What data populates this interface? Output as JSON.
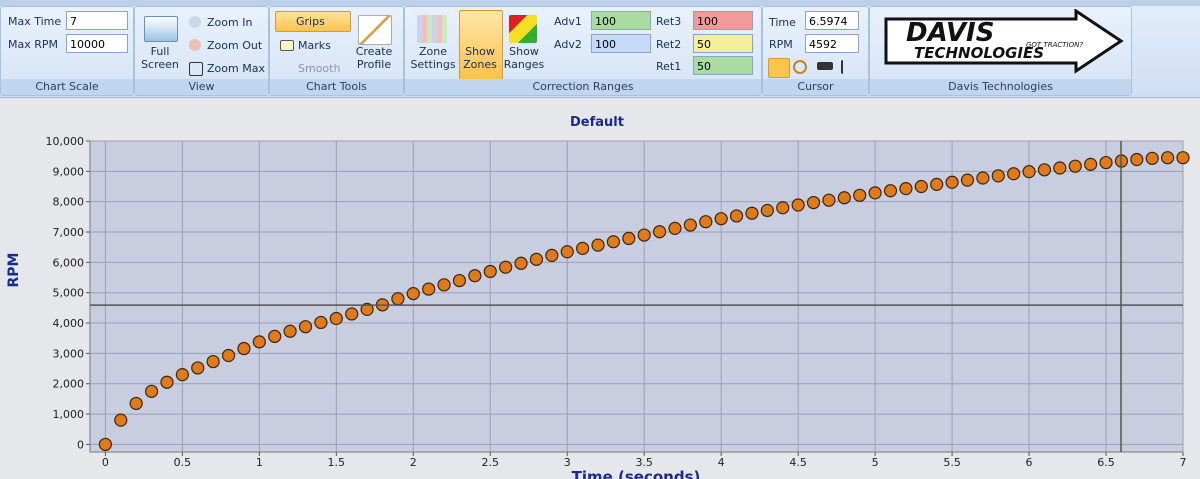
{
  "ribbon": {
    "chart_scale": {
      "label": "Chart Scale",
      "max_time_label": "Max Time",
      "max_time": 7,
      "max_rpm_label": "Max RPM",
      "max_rpm": 10000
    },
    "view": {
      "label": "View",
      "full_screen": "Full Screen",
      "zoom_in": "Zoom In",
      "zoom_out": "Zoom Out",
      "zoom_max": "Zoom Max"
    },
    "chart_tools": {
      "label": "Chart Tools",
      "grips": "Grips",
      "marks": "Marks",
      "smooth": "Smooth",
      "create_profile": "Create Profile"
    },
    "correction_ranges": {
      "label": "Correction Ranges",
      "zone_settings": "Zone Settings",
      "show_zones": "Show Zones",
      "show_ranges": "Show Ranges",
      "adv1_label": "Adv1",
      "adv1": 100,
      "adv2_label": "Adv2",
      "adv2": 100,
      "ret3_label": "Ret3",
      "ret3": 100,
      "ret2_label": "Ret2",
      "ret2": 50,
      "ret1_label": "Ret1",
      "ret1": 50
    },
    "cursor": {
      "label": "Cursor",
      "time_label": "Time",
      "time": 6.5974,
      "rpm_label": "RPM",
      "rpm": 4592
    },
    "davis": {
      "label": "Davis Technologies",
      "logo_top": "DAVIS",
      "logo_tagline": "GOT TRACTION?",
      "logo_bottom": "TECHNOLOGIES"
    }
  },
  "chart_data": {
    "type": "scatter",
    "title": "Default",
    "x_label": "Time (seconds)",
    "y_label": "RPM",
    "color": "#e07b1c",
    "x": [
      0,
      0.1,
      0.2,
      0.3,
      0.4,
      0.5,
      0.6,
      0.7,
      0.8,
      0.9,
      1,
      1.1,
      1.2,
      1.3,
      1.4,
      1.5,
      1.6,
      1.7,
      1.8,
      1.9,
      2,
      2.1,
      2.2,
      2.3,
      2.4,
      2.5,
      2.6,
      2.7,
      2.8,
      2.9,
      3,
      3.1,
      3.2,
      3.3,
      3.4,
      3.5,
      3.6,
      3.7,
      3.8,
      3.9,
      4,
      4.1,
      4.2,
      4.3,
      4.4,
      4.5,
      4.6,
      4.7,
      4.8,
      4.9,
      5,
      5.1,
      5.2,
      5.3,
      5.4,
      5.5,
      5.6,
      5.7,
      5.8,
      5.9,
      6,
      6.1,
      6.2,
      6.3,
      6.4,
      6.5,
      6.6,
      6.7,
      6.8,
      6.9,
      7
    ],
    "values": [
      0,
      800,
      1350,
      1750,
      2050,
      2300,
      2520,
      2730,
      2930,
      3160,
      3380,
      3560,
      3730,
      3880,
      4020,
      4150,
      4300,
      4450,
      4600,
      4800,
      4970,
      5120,
      5260,
      5400,
      5560,
      5700,
      5840,
      5970,
      6100,
      6230,
      6350,
      6460,
      6570,
      6680,
      6790,
      6900,
      7010,
      7120,
      7230,
      7340,
      7440,
      7530,
      7620,
      7710,
      7800,
      7890,
      7970,
      8050,
      8130,
      8210,
      8290,
      8360,
      8430,
      8500,
      8570,
      8640,
      8710,
      8780,
      8850,
      8920,
      8990,
      9050,
      9110,
      9170,
      9230,
      9290,
      9340,
      9390,
      9430,
      9450,
      9450
    ],
    "xlim": [
      -0.1,
      7
    ],
    "ylim": [
      -250,
      10000
    ],
    "xticks": [
      0,
      0.5,
      1,
      1.5,
      2,
      2.5,
      3,
      3.5,
      4,
      4.5,
      5,
      5.5,
      6,
      6.5,
      7
    ],
    "yticks": [
      0,
      {
        "value": 1000,
        "label": "1,000"
      },
      {
        "value": 2000,
        "label": "2,000"
      },
      {
        "value": 3000,
        "label": "3,000"
      },
      {
        "value": 4000,
        "label": "4,000"
      },
      {
        "value": 5000,
        "label": "5,000"
      },
      {
        "value": 6000,
        "label": "6,000"
      },
      {
        "value": 7000,
        "label": "7,000"
      },
      {
        "value": 8000,
        "label": "8,000"
      },
      {
        "value": 9000,
        "label": "9,000"
      },
      {
        "value": 10000,
        "label": "10,000"
      }
    ],
    "grid": true
  }
}
